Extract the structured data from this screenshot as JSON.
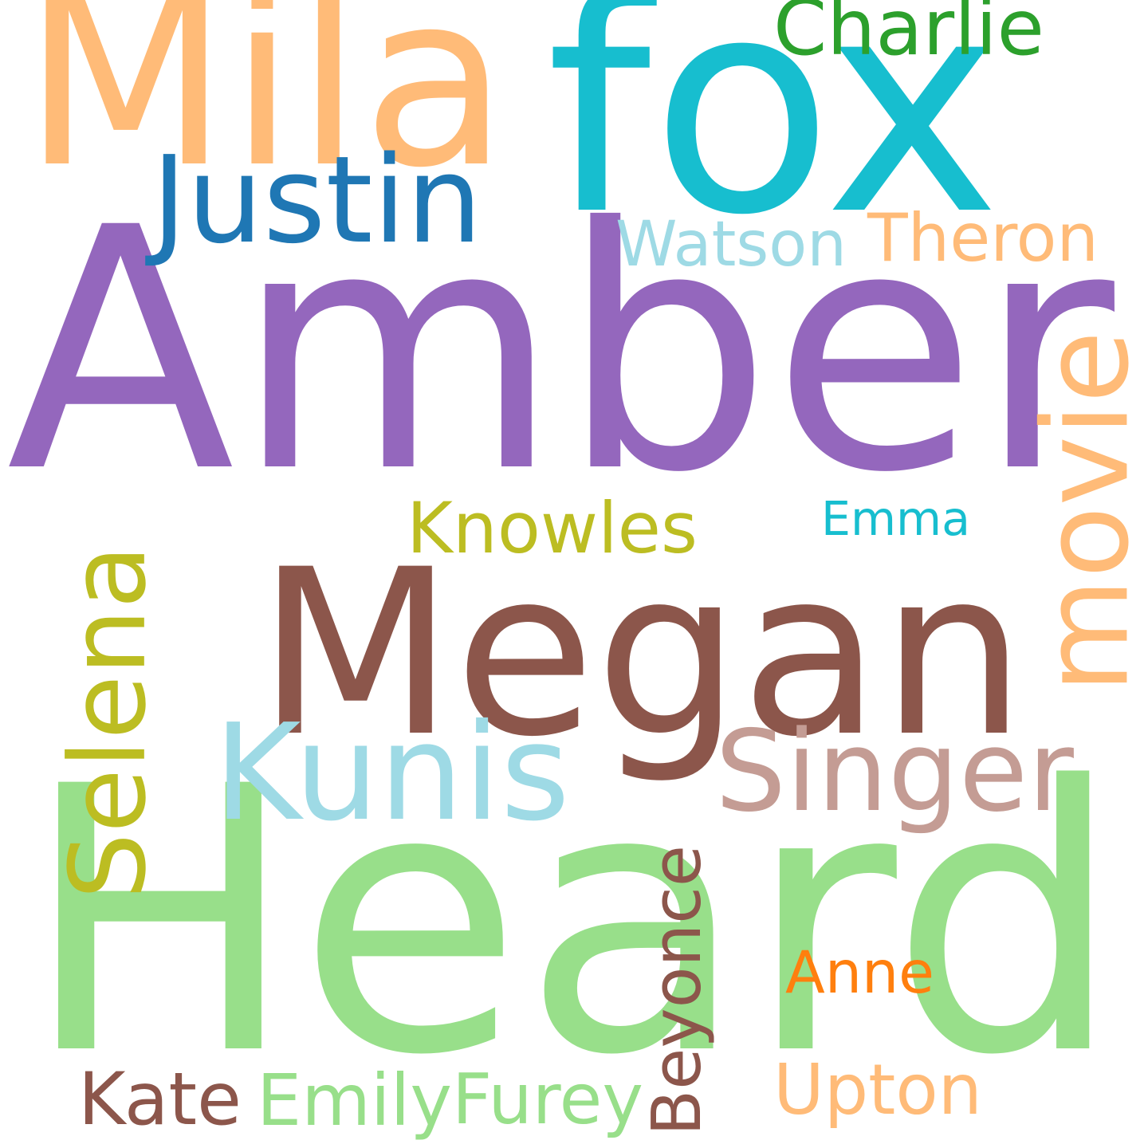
{
  "words": [
    {
      "key": "amber",
      "text": "Amber",
      "color": "#9467bd",
      "rotated": false
    },
    {
      "key": "heard",
      "text": "Heard",
      "color": "#98df8a",
      "rotated": false
    },
    {
      "key": "megan",
      "text": "Megan",
      "color": "#8c564b",
      "rotated": false
    },
    {
      "key": "fox",
      "text": "fox",
      "color": "#17becf",
      "rotated": false
    },
    {
      "key": "mila",
      "text": "Mila",
      "color": "#ffbb78",
      "rotated": false
    },
    {
      "key": "movie",
      "text": "movie",
      "color": "#ffbb78",
      "rotated": true
    },
    {
      "key": "kunis",
      "text": "Kunis",
      "color": "#9edae5",
      "rotated": false
    },
    {
      "key": "selena",
      "text": "Selena",
      "color": "#bcbd22",
      "rotated": true
    },
    {
      "key": "singer",
      "text": "Singer",
      "color": "#c49c94",
      "rotated": false
    },
    {
      "key": "justin",
      "text": "Justin",
      "color": "#1f77b4",
      "rotated": false
    },
    {
      "key": "knowles",
      "text": "Knowles",
      "color": "#bcbd22",
      "rotated": false
    },
    {
      "key": "watson",
      "text": "Watson",
      "color": "#9edae5",
      "rotated": false
    },
    {
      "key": "theron",
      "text": "Theron",
      "color": "#ffbb78",
      "rotated": false
    },
    {
      "key": "charlie",
      "text": "Charlie",
      "color": "#2ca02c",
      "rotated": false
    },
    {
      "key": "emma",
      "text": "Emma",
      "color": "#17becf",
      "rotated": false
    },
    {
      "key": "beyonce",
      "text": "Beyonce",
      "color": "#8c564b",
      "rotated": true
    },
    {
      "key": "anne",
      "text": "Anne",
      "color": "#ff7f0e",
      "rotated": false
    },
    {
      "key": "upton",
      "text": "Upton",
      "color": "#ffbb78",
      "rotated": false
    },
    {
      "key": "kate",
      "text": "Kate",
      "color": "#8c564b",
      "rotated": false
    },
    {
      "key": "emily",
      "text": "Emily",
      "color": "#98df8a",
      "rotated": false
    },
    {
      "key": "furey",
      "text": "Furey",
      "color": "#98df8a",
      "rotated": false
    }
  ]
}
